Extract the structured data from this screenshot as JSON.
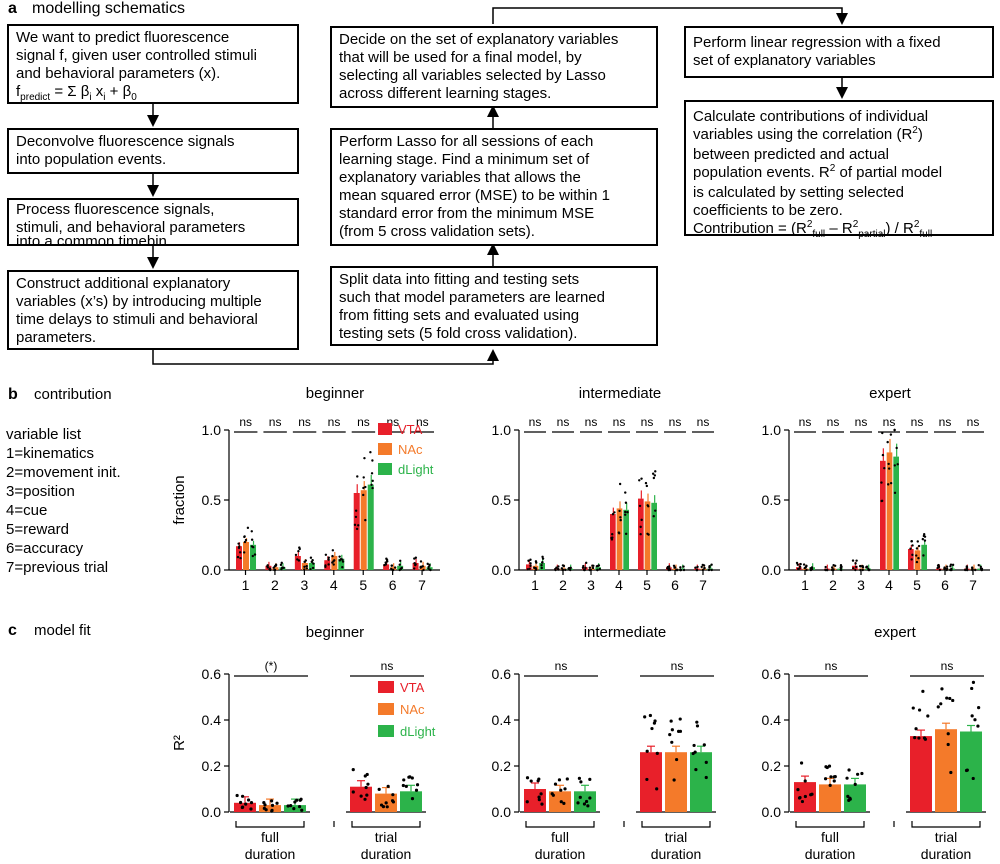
{
  "panel_a": {
    "letter": "a",
    "heading": "modelling schematics",
    "col1": [
      {
        "lines": [
          "We want to predict fluorescence",
          "signal f, given user controlled stimuli",
          "and behavioral parameters (x)."
        ],
        "formula": {
          "f": "f",
          "f_sub": "predict",
          "eq": " = Σ β",
          "beta_sub": "i",
          "x": " x",
          "x_sub": "i",
          "tail": " + β",
          "zero_sub": "0"
        }
      },
      {
        "lines": [
          "Deconvolve fluorescence signals",
          "into population events."
        ]
      },
      {
        "lines": [
          "Process fluorescence signals,",
          "stimuli, and behavioral parameters",
          "into a common timebin."
        ]
      },
      {
        "lines": [
          "Construct additional explanatory",
          "variables (x’s) by introducing multiple",
          "time delays to stimuli and behavioral",
          "parameters."
        ]
      }
    ],
    "col2": [
      {
        "lines": [
          "Decide on the set of explanatory variables",
          "that will be used for a final model, by",
          "selecting all variables selected by Lasso",
          "across different learning stages."
        ]
      },
      {
        "lines": [
          "Perform Lasso for all sessions of each",
          "learning stage. Find a minimum set of",
          "explanatory variables that allows the",
          "mean squared error (MSE) to be within 1",
          "standard error  from the minimum MSE",
          "(from 5 cross validation sets)."
        ]
      },
      {
        "lines": [
          "Split data into fitting and testing sets",
          "such that model parameters are learned",
          "from fitting sets and evaluated using",
          "testing sets (5 fold cross validation)."
        ]
      }
    ],
    "col3": [
      {
        "lines": [
          "Perform linear regression with a fixed",
          "set of explanatory variables"
        ]
      },
      {
        "lines": [
          "Calculate contributions of individual",
          "variables using the correlation (R",
          "between predicted and actual",
          "population events. R",
          "is calculated by setting selected",
          "coefficients to be zero."
        ],
        "contrib": {
          "label": "Contribution = (R",
          "full": "full",
          "minus": " – R",
          "partial": "partial",
          "div": ") / R",
          "full2": "full",
          "two": "2",
          "two_b": ")",
          "partial_model": " of partial model"
        }
      }
    ]
  },
  "panel_b": {
    "letter": "b",
    "heading": "contribution",
    "variable_list_title": "variable list",
    "variables": [
      "1=kinematics",
      "2=movement init.",
      "3=position",
      "4=cue",
      "5=reward",
      "6=accuracy",
      "7=previous trial"
    ]
  },
  "panel_c": {
    "letter": "c",
    "heading": "model fit"
  },
  "colors": {
    "VTA": "#e8202a",
    "NAc": "#f47a2a",
    "dLight": "#2cb34a"
  },
  "chart_data": [
    {
      "type": "bar",
      "title": "beginner",
      "ylabel": "fraction",
      "ylim": [
        0,
        1.0
      ],
      "yticks": [
        "0.0",
        "0.5",
        "1.0"
      ],
      "categories": [
        "1",
        "2",
        "3",
        "4",
        "5",
        "6",
        "7"
      ],
      "sig": [
        "ns",
        "ns",
        "ns",
        "ns",
        "ns",
        "ns",
        "ns"
      ],
      "legend": [
        "VTA",
        "NAc",
        "dLight"
      ],
      "series": [
        {
          "name": "VTA",
          "values": [
            0.17,
            0.03,
            0.1,
            0.07,
            0.55,
            0.04,
            0.05
          ]
        },
        {
          "name": "NAc",
          "values": [
            0.2,
            0.02,
            0.05,
            0.1,
            0.57,
            0.02,
            0.03
          ]
        },
        {
          "name": "dLight",
          "values": [
            0.18,
            0.02,
            0.05,
            0.08,
            0.61,
            0.03,
            0.02
          ]
        }
      ]
    },
    {
      "type": "bar",
      "title": "intermediate",
      "ylabel": "",
      "ylim": [
        0,
        1.0
      ],
      "yticks": [
        "0.0",
        "0.5",
        "1.0"
      ],
      "categories": [
        "1",
        "2",
        "3",
        "4",
        "5",
        "6",
        "7"
      ],
      "sig": [
        "ns",
        "ns",
        "ns",
        "ns",
        "ns",
        "ns",
        "ns"
      ],
      "legend": [],
      "series": [
        {
          "name": "VTA",
          "values": [
            0.04,
            0.01,
            0.02,
            0.4,
            0.51,
            0.02,
            0.01
          ]
        },
        {
          "name": "NAc",
          "values": [
            0.03,
            0.01,
            0.01,
            0.44,
            0.49,
            0.01,
            0.01
          ]
        },
        {
          "name": "dLight",
          "values": [
            0.05,
            0.01,
            0.02,
            0.43,
            0.48,
            0.01,
            0.01
          ]
        }
      ]
    },
    {
      "type": "bar",
      "title": "expert",
      "ylabel": "",
      "ylim": [
        0,
        1.0
      ],
      "yticks": [
        "0.0",
        "0.5",
        "1.0"
      ],
      "categories": [
        "1",
        "2",
        "3",
        "4",
        "5",
        "6",
        "7"
      ],
      "sig": [
        "ns",
        "ns",
        "ns",
        "ns",
        "ns",
        "ns",
        "ns"
      ],
      "legend": [],
      "series": [
        {
          "name": "VTA",
          "values": [
            0.02,
            0.01,
            0.03,
            0.78,
            0.15,
            0.01,
            0.01
          ]
        },
        {
          "name": "NAc",
          "values": [
            0.01,
            0.01,
            0.01,
            0.84,
            0.14,
            0.01,
            0.01
          ]
        },
        {
          "name": "dLight",
          "values": [
            0.02,
            0.01,
            0.01,
            0.81,
            0.18,
            0.01,
            0.01
          ]
        }
      ]
    },
    {
      "type": "bar",
      "title": "beginner",
      "ylabel": "R²",
      "ylim": [
        0,
        0.6
      ],
      "yticks": [
        "0.0",
        "0.2",
        "0.4",
        "0.6"
      ],
      "categories": [
        "full duration",
        "trial duration"
      ],
      "cat_lines": [
        [
          "full",
          "duration"
        ],
        [
          "trial",
          "duration"
        ]
      ],
      "sig": [
        "(*)",
        "ns"
      ],
      "legend": [
        "VTA",
        "NAc",
        "dLight"
      ],
      "series": [
        {
          "name": "VTA",
          "values": [
            0.04,
            0.11
          ]
        },
        {
          "name": "NAc",
          "values": [
            0.03,
            0.08
          ]
        },
        {
          "name": "dLight",
          "values": [
            0.03,
            0.09
          ]
        }
      ]
    },
    {
      "type": "bar",
      "title": "intermediate",
      "ylabel": "",
      "ylim": [
        0,
        0.6
      ],
      "yticks": [
        "0.0",
        "0.2",
        "0.4",
        "0.6"
      ],
      "categories": [
        "full duration",
        "trial duration"
      ],
      "cat_lines": [
        [
          "full",
          "duration"
        ],
        [
          "trial",
          "duration"
        ]
      ],
      "sig": [
        "ns",
        "ns"
      ],
      "legend": [],
      "series": [
        {
          "name": "VTA",
          "values": [
            0.1,
            0.26
          ]
        },
        {
          "name": "NAc",
          "values": [
            0.09,
            0.26
          ]
        },
        {
          "name": "dLight",
          "values": [
            0.09,
            0.26
          ]
        }
      ]
    },
    {
      "type": "bar",
      "title": "expert",
      "ylabel": "",
      "ylim": [
        0,
        0.6
      ],
      "yticks": [
        "0.0",
        "0.2",
        "0.4",
        "0.6"
      ],
      "categories": [
        "full duration",
        "trial duration"
      ],
      "cat_lines": [
        [
          "full",
          "duration"
        ],
        [
          "trial",
          "duration"
        ]
      ],
      "sig": [
        "ns",
        "ns"
      ],
      "legend": [],
      "series": [
        {
          "name": "VTA",
          "values": [
            0.13,
            0.33
          ]
        },
        {
          "name": "NAc",
          "values": [
            0.12,
            0.36
          ]
        },
        {
          "name": "dLight",
          "values": [
            0.12,
            0.35
          ]
        }
      ]
    }
  ]
}
